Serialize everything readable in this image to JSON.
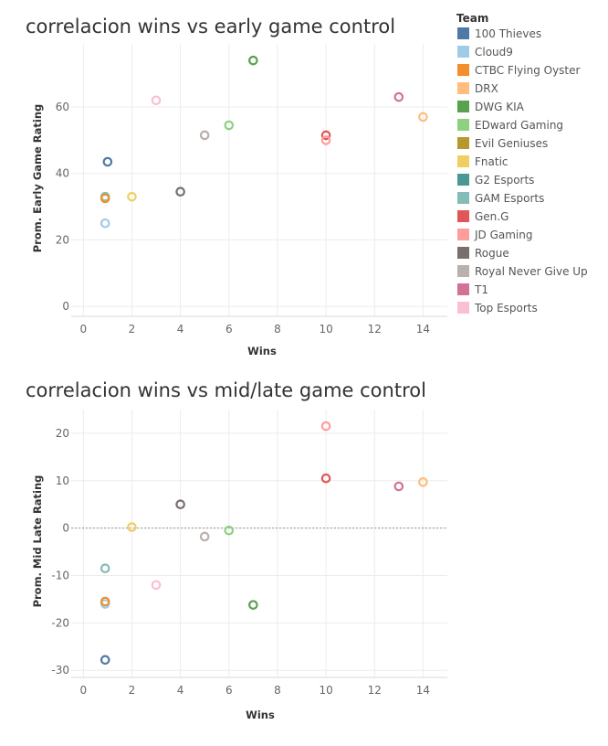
{
  "legend": {
    "title": "Team",
    "items": [
      {
        "name": "100 Thieves",
        "color": "#4e79a7"
      },
      {
        "name": "Cloud9",
        "color": "#a0cbe8"
      },
      {
        "name": "CTBC Flying Oyster",
        "color": "#f28e2b"
      },
      {
        "name": "DRX",
        "color": "#ffbe7d"
      },
      {
        "name": "DWG KIA",
        "color": "#59a14f"
      },
      {
        "name": "EDward Gaming",
        "color": "#8cd17d"
      },
      {
        "name": "Evil Geniuses",
        "color": "#b6992d"
      },
      {
        "name": "Fnatic",
        "color": "#f1ce63"
      },
      {
        "name": "G2 Esports",
        "color": "#499894"
      },
      {
        "name": "GAM Esports",
        "color": "#86bcb6"
      },
      {
        "name": "Gen.G",
        "color": "#e15759"
      },
      {
        "name": "JD Gaming",
        "color": "#ff9d9a"
      },
      {
        "name": "Rogue",
        "color": "#79706e"
      },
      {
        "name": "Royal Never Give Up",
        "color": "#bab0ac"
      },
      {
        "name": "T1",
        "color": "#d37295"
      },
      {
        "name": "Top Esports",
        "color": "#fabfd2"
      }
    ]
  },
  "chart_data": [
    {
      "type": "scatter",
      "title": "correlacion wins vs early game control",
      "xlabel": "Wins",
      "ylabel": "Prom. Early Game Rating",
      "xlim": [
        -0.5,
        15
      ],
      "ylim": [
        -3,
        79
      ],
      "xticks": [
        0,
        2,
        4,
        6,
        8,
        10,
        12,
        14
      ],
      "yticks": [
        0,
        20,
        40,
        60
      ],
      "grid": true,
      "zero_line": false,
      "points": [
        {
          "team": "100 Thieves",
          "x": 1,
          "y": 43.5
        },
        {
          "team": "Cloud9",
          "x": 0.9,
          "y": 25
        },
        {
          "team": "GAM Esports",
          "x": 0.9,
          "y": 33
        },
        {
          "team": "CTBC Flying Oyster",
          "x": 0.9,
          "y": 32.5
        },
        {
          "team": "Fnatic",
          "x": 2,
          "y": 33
        },
        {
          "team": "Top Esports",
          "x": 3,
          "y": 62
        },
        {
          "team": "Rogue",
          "x": 4,
          "y": 34.5
        },
        {
          "team": "Royal Never Give Up",
          "x": 5,
          "y": 51.5
        },
        {
          "team": "EDward Gaming",
          "x": 6,
          "y": 54.5
        },
        {
          "team": "DWG KIA",
          "x": 7,
          "y": 74
        },
        {
          "team": "Gen.G",
          "x": 10,
          "y": 51.5
        },
        {
          "team": "JD Gaming",
          "x": 10,
          "y": 50
        },
        {
          "team": "T1",
          "x": 13,
          "y": 63
        },
        {
          "team": "DRX",
          "x": 14,
          "y": 57
        }
      ]
    },
    {
      "type": "scatter",
      "title": "correlacion wins vs mid/late game control",
      "xlabel": "Wins",
      "ylabel": "Prom. Mid Late Rating",
      "xlim": [
        -0.5,
        15
      ],
      "ylim": [
        -31.5,
        25
      ],
      "xticks": [
        0,
        2,
        4,
        6,
        8,
        10,
        12,
        14
      ],
      "yticks": [
        -30,
        -20,
        -10,
        0,
        10,
        20
      ],
      "grid": true,
      "zero_line": true,
      "points": [
        {
          "team": "100 Thieves",
          "x": 0.9,
          "y": -27.8
        },
        {
          "team": "Cloud9",
          "x": 0.9,
          "y": -16
        },
        {
          "team": "CTBC Flying Oyster",
          "x": 0.9,
          "y": -15.5
        },
        {
          "team": "GAM Esports",
          "x": 0.9,
          "y": -8.5
        },
        {
          "team": "Fnatic",
          "x": 2,
          "y": 0.2
        },
        {
          "team": "Top Esports",
          "x": 3,
          "y": -12
        },
        {
          "team": "Rogue",
          "x": 4,
          "y": 5
        },
        {
          "team": "Royal Never Give Up",
          "x": 5,
          "y": -1.8
        },
        {
          "team": "EDward Gaming",
          "x": 6,
          "y": -0.5
        },
        {
          "team": "DWG KIA",
          "x": 7,
          "y": -16.2
        },
        {
          "team": "Gen.G",
          "x": 10,
          "y": 10.5
        },
        {
          "team": "JD Gaming",
          "x": 10,
          "y": 21.5
        },
        {
          "team": "T1",
          "x": 13,
          "y": 8.8
        },
        {
          "team": "DRX",
          "x": 14,
          "y": 9.7
        }
      ]
    }
  ]
}
